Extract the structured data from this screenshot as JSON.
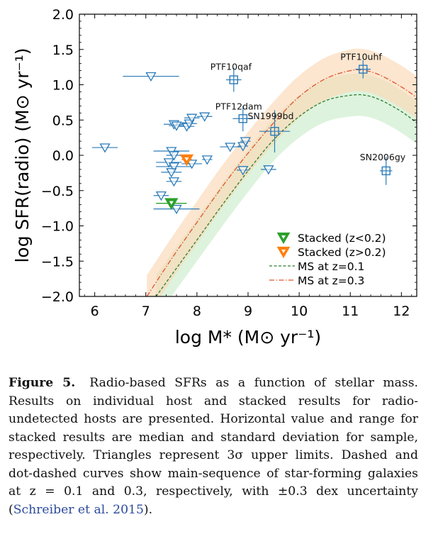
{
  "chart_data": {
    "type": "scatter",
    "xlabel": "log M* (M⊙ yr⁻¹)",
    "ylabel": "log SFR(radio) (M⊙ yr⁻¹)",
    "xlim": [
      5.7,
      12.3
    ],
    "ylim": [
      -2.0,
      2.0
    ],
    "xticks": [
      "6",
      "7",
      "8",
      "9",
      "10",
      "11",
      "12"
    ],
    "yticks": [
      "−2.0",
      "−1.5",
      "−1.0",
      "−0.5",
      "0.0",
      "0.5",
      "1.0",
      "1.5",
      "2.0"
    ],
    "grid": false,
    "legend_position": "bottom-right",
    "colors": {
      "individual": "#2b7bb9",
      "stacked_low": "#2ca02c",
      "stacked_high": "#ff7f0e",
      "ms_z01": "#2e7d32",
      "ms_z03": "#e0532b",
      "band_z01": "#cfeecf",
      "band_z03": "#fbd9b5"
    },
    "detections": [
      {
        "label": "PTF10uhf",
        "x": 11.25,
        "y": 1.22,
        "xerr": 0.15,
        "yerr": 0.13
      },
      {
        "label": "PTF10qaf",
        "x": 8.72,
        "y": 1.07,
        "xerr": 0.15,
        "yerr": 0.17
      },
      {
        "label": "PTF12dam",
        "x": 8.9,
        "y": 0.52,
        "xerr": 0.2,
        "yerr": 0.18
      },
      {
        "label": "SN1999bd",
        "x": 9.52,
        "y": 0.34,
        "xerr": 0.3,
        "yerr": 0.3
      },
      {
        "label": "SN2006gy",
        "x": 11.7,
        "y": -0.22,
        "xerr": 0.12,
        "yerr": 0.2
      }
    ],
    "upper_limits": [
      {
        "x": 7.1,
        "y": 1.12,
        "xerr": 0.55
      },
      {
        "x": 6.2,
        "y": 0.11,
        "xerr": 0.25
      },
      {
        "x": 7.55,
        "y": 0.44,
        "xerr": 0.2
      },
      {
        "x": 7.6,
        "y": 0.42,
        "xerr": 0.15
      },
      {
        "x": 7.8,
        "y": 0.41,
        "xerr": 0.15
      },
      {
        "x": 7.85,
        "y": 0.45,
        "xerr": 0.15
      },
      {
        "x": 7.9,
        "y": 0.53,
        "xerr": 0.15
      },
      {
        "x": 8.15,
        "y": 0.55,
        "xerr": 0.15
      },
      {
        "x": 7.5,
        "y": 0.06,
        "xerr": 0.35
      },
      {
        "x": 7.55,
        "y": 0.0,
        "xerr": 0.15
      },
      {
        "x": 7.45,
        "y": -0.1,
        "xerr": 0.25
      },
      {
        "x": 7.55,
        "y": -0.16,
        "xerr": 0.35
      },
      {
        "x": 7.5,
        "y": -0.24,
        "xerr": 0.2
      },
      {
        "x": 7.55,
        "y": -0.37,
        "xerr": 0.15
      },
      {
        "x": 7.9,
        "y": -0.12,
        "xerr": 0.2
      },
      {
        "x": 8.2,
        "y": -0.06,
        "xerr": 0.1
      },
      {
        "x": 8.65,
        "y": 0.12,
        "xerr": 0.2
      },
      {
        "x": 8.9,
        "y": 0.13,
        "xerr": 0.1
      },
      {
        "x": 8.95,
        "y": 0.2,
        "xerr": 0.1
      },
      {
        "x": 8.9,
        "y": -0.21,
        "xerr": 0.12
      },
      {
        "x": 9.4,
        "y": -0.2,
        "xerr": 0.15
      },
      {
        "x": 7.3,
        "y": -0.57,
        "xerr": 0.15
      },
      {
        "x": 7.6,
        "y": -0.76,
        "xerr": 0.45
      }
    ],
    "stacked": [
      {
        "name": "Stacked (z<0.2)",
        "x": 7.5,
        "y": -0.68,
        "xerr": 0.3,
        "color": "stacked_low"
      },
      {
        "name": "Stacked (z>0.2)",
        "x": 7.8,
        "y": -0.06,
        "xerr": 0.1,
        "color": "stacked_high"
      }
    ],
    "main_sequence": [
      {
        "name": "MS at z=0.1",
        "style": "dashed",
        "color": "ms_z01",
        "uncertainty_dex": 0.3,
        "x": [
          7.2,
          7.5,
          8.0,
          8.5,
          9.0,
          9.5,
          10.0,
          10.5,
          11.0,
          11.3,
          11.6,
          12.0,
          12.3
        ],
        "y": [
          -2.0,
          -1.7,
          -1.2,
          -0.7,
          -0.22,
          0.22,
          0.55,
          0.77,
          0.85,
          0.85,
          0.78,
          0.62,
          0.46
        ]
      },
      {
        "name": "MS at z=0.3",
        "style": "dashdot",
        "color": "ms_z03",
        "uncertainty_dex": 0.3,
        "x": [
          7.02,
          7.5,
          8.0,
          8.5,
          9.0,
          9.5,
          10.0,
          10.5,
          11.0,
          11.3,
          11.6,
          12.0,
          12.3
        ],
        "y": [
          -2.0,
          -1.47,
          -0.95,
          -0.44,
          0.03,
          0.46,
          0.83,
          1.08,
          1.2,
          1.2,
          1.13,
          0.97,
          0.82
        ]
      }
    ],
    "legend": [
      "Stacked (z<0.2)",
      "Stacked (z>0.2)",
      "MS at z=0.1",
      "MS at z=0.3"
    ]
  },
  "caption": {
    "label": "Figure 5.",
    "text": "Radio-based SFRs as a function of stellar mass. Results on individual host and stacked results for radio-undetected hosts are presented. Horizontal value and range for stacked results are median and standard deviation for sample, respectively. Triangles represent 3σ upper limits. Dashed and dot-dashed curves show main-sequence of star-forming galaxies at z = 0.1 and 0.3, respectively, with ±0.3 dex uncertainty (",
    "citation": "Schreiber et al. 2015",
    "end": ")."
  }
}
